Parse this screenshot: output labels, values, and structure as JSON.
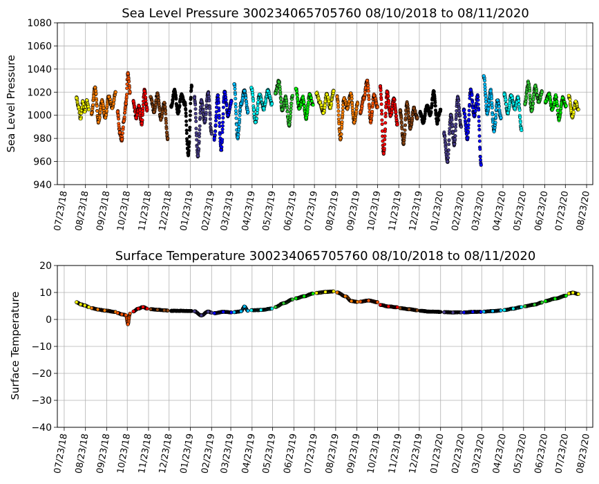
{
  "chart_data": [
    {
      "type": "scatter",
      "title": "Sea Level Pressure 300234065705760  08/10/2018 to 08/11/2020",
      "xlabel": "",
      "ylabel": "Sea Level Pressure",
      "ylim": [
        940,
        1080
      ],
      "yticks": [
        940,
        960,
        980,
        1000,
        1020,
        1040,
        1060,
        1080
      ],
      "xlim": [
        "2018-07-13",
        "2020-09-01"
      ],
      "xtick_labels": [
        "07/23/18",
        "08/23/18",
        "09/23/18",
        "10/23/18",
        "11/23/18",
        "12/23/18",
        "01/23/19",
        "02/23/19",
        "03/23/19",
        "04/23/19",
        "05/23/19",
        "06/23/19",
        "07/23/19",
        "08/23/19",
        "09/23/19",
        "10/23/19",
        "11/23/19",
        "12/23/19",
        "01/23/20",
        "02/23/20",
        "03/23/20",
        "04/23/20",
        "05/23/20",
        "06/23/20",
        "07/23/20",
        "08/23/20"
      ],
      "grid": true,
      "series": [
        {
          "color": "#ffff00",
          "x": [
            "2018-08-10",
            "2018-08-13",
            "2018-08-16",
            "2018-08-19",
            "2018-08-22",
            "2018-08-25",
            "2018-08-28"
          ],
          "y": [
            1015,
            1007,
            997,
            1012,
            1003,
            1013,
            1005
          ]
        },
        {
          "color": "#ff7f00",
          "x": [
            "2018-09-01",
            "2018-09-06",
            "2018-09-11",
            "2018-09-16",
            "2018-09-21",
            "2018-09-26",
            "2018-10-01",
            "2018-10-06"
          ],
          "y": [
            1002,
            1024,
            994,
            1012,
            998,
            1016,
            1006,
            1020
          ]
        },
        {
          "color": "#ff5500",
          "x": [
            "2018-10-09",
            "2018-10-12",
            "2018-10-15",
            "2018-10-18",
            "2018-10-21",
            "2018-10-24",
            "2018-10-27"
          ],
          "y": [
            1003,
            985,
            979,
            995,
            1010,
            1036,
            1020
          ]
        },
        {
          "color": "#ff0000",
          "x": [
            "2018-11-01",
            "2018-11-05",
            "2018-11-09",
            "2018-11-13",
            "2018-11-17",
            "2018-11-21"
          ],
          "y": [
            1012,
            998,
            1008,
            993,
            1021,
            1005
          ]
        },
        {
          "color": "#8b4513",
          "x": [
            "2018-11-26",
            "2018-12-01",
            "2018-12-06",
            "2018-12-11",
            "2018-12-16",
            "2018-12-21"
          ],
          "y": [
            1016,
            1003,
            1018,
            997,
            1011,
            980
          ]
        },
        {
          "color": "#000000",
          "x": [
            "2018-12-26",
            "2018-12-31",
            "2019-01-05",
            "2019-01-10",
            "2019-01-15",
            "2019-01-20",
            "2019-01-25"
          ],
          "y": [
            1008,
            1021,
            1002,
            1017,
            1010,
            966,
            1025
          ]
        },
        {
          "color": "#483d8b",
          "x": [
            "2019-01-29",
            "2019-02-03",
            "2019-02-08",
            "2019-02-13",
            "2019-02-18",
            "2019-02-23"
          ],
          "y": [
            1015,
            965,
            1012,
            995,
            1019,
            984
          ]
        },
        {
          "color": "#0000ff",
          "x": [
            "2019-02-27",
            "2019-03-04",
            "2019-03-09",
            "2019-03-14",
            "2019-03-19",
            "2019-03-24"
          ],
          "y": [
            980,
            1017,
            970,
            1020,
            1000,
            1012
          ]
        },
        {
          "color": "#00bfff",
          "x": [
            "2019-03-28",
            "2019-04-02",
            "2019-04-07",
            "2019-04-12",
            "2019-04-17"
          ],
          "y": [
            1027,
            981,
            1010,
            1021,
            1003
          ]
        },
        {
          "color": "#00ffff",
          "x": [
            "2019-04-22",
            "2019-04-28",
            "2019-05-04",
            "2019-05-10",
            "2019-05-16",
            "2019-05-22"
          ],
          "y": [
            1024,
            994,
            1018,
            1006,
            1021,
            1010
          ]
        },
        {
          "color": "#32cd32",
          "x": [
            "2019-05-27",
            "2019-06-01",
            "2019-06-06",
            "2019-06-11",
            "2019-06-16",
            "2019-06-21"
          ],
          "y": [
            1019,
            1029,
            1005,
            1015,
            992,
            1017
          ]
        },
        {
          "color": "#00ff00",
          "x": [
            "2019-06-26",
            "2019-07-01",
            "2019-07-06",
            "2019-07-11",
            "2019-07-16",
            "2019-07-21"
          ],
          "y": [
            1023,
            1006,
            1015,
            998,
            1018,
            1009
          ]
        },
        {
          "color": "#ffff00",
          "x": [
            "2019-07-26",
            "2019-07-31",
            "2019-08-05",
            "2019-08-10",
            "2019-08-15",
            "2019-08-20"
          ],
          "y": [
            1019,
            1011,
            1002,
            1018,
            1007,
            1021
          ]
        },
        {
          "color": "#ff7f00",
          "x": [
            "2019-08-25",
            "2019-08-30",
            "2019-09-04",
            "2019-09-09",
            "2019-09-14",
            "2019-09-19",
            "2019-09-24"
          ],
          "y": [
            1016,
            980,
            1014,
            1006,
            1019,
            994,
            1010
          ]
        },
        {
          "color": "#ff5500",
          "x": [
            "2019-09-28",
            "2019-10-03",
            "2019-10-08",
            "2019-10-13",
            "2019-10-18",
            "2019-10-23"
          ],
          "y": [
            1003,
            1015,
            1030,
            995,
            1017,
            1007
          ]
        },
        {
          "color": "#ff0000",
          "x": [
            "2019-10-27",
            "2019-11-01",
            "2019-11-06",
            "2019-11-11",
            "2019-11-16",
            "2019-11-21"
          ],
          "y": [
            1025,
            967,
            1020,
            1000,
            1014,
            992
          ]
        },
        {
          "color": "#8b4513",
          "x": [
            "2019-11-25",
            "2019-11-30",
            "2019-12-05",
            "2019-12-10",
            "2019-12-15",
            "2019-12-20"
          ],
          "y": [
            1004,
            976,
            1010,
            989,
            1006,
            998
          ]
        },
        {
          "color": "#000000",
          "x": [
            "2019-12-24",
            "2019-12-29",
            "2020-01-03",
            "2020-01-08",
            "2020-01-13",
            "2020-01-18",
            "2020-01-23"
          ],
          "y": [
            1002,
            994,
            1008,
            1001,
            1020,
            994,
            1005
          ]
        },
        {
          "color": "#483d8b",
          "x": [
            "2020-01-28",
            "2020-02-02",
            "2020-02-07",
            "2020-02-12",
            "2020-02-17",
            "2020-02-22"
          ],
          "y": [
            984,
            960,
            1000,
            975,
            1015,
            990
          ]
        },
        {
          "color": "#0000ff",
          "x": [
            "2020-02-26",
            "2020-03-02",
            "2020-03-07",
            "2020-03-12",
            "2020-03-17",
            "2020-03-22"
          ],
          "y": [
            1004,
            980,
            1022,
            1000,
            1016,
            957
          ]
        },
        {
          "color": "#00bfff",
          "x": [
            "2020-03-26",
            "2020-03-31",
            "2020-04-05",
            "2020-04-10",
            "2020-04-15",
            "2020-04-20"
          ],
          "y": [
            1034,
            1002,
            1021,
            986,
            1013,
            998
          ]
        },
        {
          "color": "#00ffff",
          "x": [
            "2020-04-25",
            "2020-04-30",
            "2020-05-05",
            "2020-05-10",
            "2020-05-15",
            "2020-05-20"
          ],
          "y": [
            1018,
            1002,
            1017,
            1006,
            1015,
            987
          ]
        },
        {
          "color": "#32cd32",
          "x": [
            "2020-05-25",
            "2020-05-30",
            "2020-06-04",
            "2020-06-09",
            "2020-06-14",
            "2020-06-19"
          ],
          "y": [
            1010,
            1028,
            1004,
            1025,
            1012,
            1020
          ]
        },
        {
          "color": "#00ff00",
          "x": [
            "2020-06-24",
            "2020-06-29",
            "2020-07-04",
            "2020-07-09",
            "2020-07-14",
            "2020-07-19",
            "2020-07-24"
          ],
          "y": [
            1012,
            1018,
            1005,
            1016,
            997,
            1015,
            1008
          ]
        },
        {
          "color": "#ffff00",
          "x": [
            "2020-07-28",
            "2020-08-02",
            "2020-08-07",
            "2020-08-11"
          ],
          "y": [
            1017,
            999,
            1012,
            1005
          ]
        }
      ]
    },
    {
      "type": "scatter",
      "title": "Surface Temperature 300234065705760  08/10/2018 to 08/11/2020",
      "xlabel": "",
      "ylabel": "Surface Temperature",
      "ylim": [
        -40,
        20
      ],
      "yticks": [
        -40,
        -30,
        -20,
        -10,
        0,
        10,
        20
      ],
      "ytick_labels": [
        "−40",
        "−30",
        "−20",
        "−10",
        "0",
        "10",
        "20"
      ],
      "xlim": [
        "2018-07-13",
        "2020-09-01"
      ],
      "xtick_labels": [
        "07/23/18",
        "08/23/18",
        "09/23/18",
        "10/23/18",
        "11/23/18",
        "12/23/18",
        "01/23/19",
        "02/23/19",
        "03/23/19",
        "04/23/19",
        "05/23/19",
        "06/23/19",
        "07/23/19",
        "08/23/19",
        "09/23/19",
        "10/23/19",
        "11/23/19",
        "12/23/19",
        "01/23/20",
        "02/23/20",
        "03/23/20",
        "04/23/20",
        "05/23/20",
        "06/23/20",
        "07/23/20",
        "08/23/20"
      ],
      "grid": true,
      "series": [
        {
          "color": "#ffff00",
          "x": [
            "2018-08-10",
            "2018-08-16",
            "2018-08-22",
            "2018-08-28"
          ],
          "y": [
            6.4,
            5.6,
            5.2,
            4.6
          ]
        },
        {
          "color": "#ff7f00",
          "x": [
            "2018-09-01",
            "2018-09-10",
            "2018-09-20",
            "2018-10-06"
          ],
          "y": [
            4.2,
            3.7,
            3.3,
            2.8
          ]
        },
        {
          "color": "#ff5500",
          "x": [
            "2018-10-09",
            "2018-10-15",
            "2018-10-21",
            "2018-10-24",
            "2018-10-27"
          ],
          "y": [
            2.4,
            1.9,
            1.6,
            -1.8,
            2.2
          ]
        },
        {
          "color": "#ff0000",
          "x": [
            "2018-11-01",
            "2018-11-08",
            "2018-11-15",
            "2018-11-21"
          ],
          "y": [
            3.0,
            4.0,
            4.6,
            4.0
          ]
        },
        {
          "color": "#8b4513",
          "x": [
            "2018-11-26",
            "2018-12-06",
            "2018-12-16",
            "2018-12-21"
          ],
          "y": [
            3.8,
            3.6,
            3.4,
            3.3
          ]
        },
        {
          "color": "#000000",
          "x": [
            "2018-12-26",
            "2019-01-08",
            "2019-01-25"
          ],
          "y": [
            3.2,
            3.2,
            3.1
          ]
        },
        {
          "color": "#483d8b",
          "x": [
            "2019-01-29",
            "2019-02-08",
            "2019-02-18",
            "2019-02-23"
          ],
          "y": [
            3.0,
            1.5,
            2.9,
            2.5
          ]
        },
        {
          "color": "#0000ff",
          "x": [
            "2019-02-27",
            "2019-03-12",
            "2019-03-24"
          ],
          "y": [
            2.3,
            2.8,
            2.6
          ]
        },
        {
          "color": "#00bfff",
          "x": [
            "2019-03-28",
            "2019-04-07",
            "2019-04-12",
            "2019-04-17"
          ],
          "y": [
            2.7,
            3.0,
            4.8,
            3.2
          ]
        },
        {
          "color": "#00ffff",
          "x": [
            "2019-04-22",
            "2019-05-06",
            "2019-05-22"
          ],
          "y": [
            3.4,
            3.5,
            4.0
          ]
        },
        {
          "color": "#32cd32",
          "x": [
            "2019-05-27",
            "2019-06-08",
            "2019-06-21"
          ],
          "y": [
            4.6,
            6.0,
            7.4
          ]
        },
        {
          "color": "#00ff00",
          "x": [
            "2019-06-26",
            "2019-07-08",
            "2019-07-21"
          ],
          "y": [
            7.8,
            8.6,
            9.6
          ]
        },
        {
          "color": "#ffff00",
          "x": [
            "2019-07-26",
            "2019-08-08",
            "2019-08-20"
          ],
          "y": [
            9.8,
            10.2,
            10.4
          ]
        },
        {
          "color": "#ff7f00",
          "x": [
            "2019-08-25",
            "2019-09-06",
            "2019-09-15",
            "2019-09-24"
          ],
          "y": [
            10.0,
            8.6,
            6.8,
            6.5
          ]
        },
        {
          "color": "#ff5500",
          "x": [
            "2019-09-28",
            "2019-10-10",
            "2019-10-23"
          ],
          "y": [
            6.6,
            7.0,
            6.4
          ]
        },
        {
          "color": "#ff0000",
          "x": [
            "2019-10-27",
            "2019-11-08",
            "2019-11-21"
          ],
          "y": [
            5.4,
            4.8,
            4.5
          ]
        },
        {
          "color": "#8b4513",
          "x": [
            "2019-11-25",
            "2019-12-08",
            "2019-12-20"
          ],
          "y": [
            4.2,
            3.8,
            3.4
          ]
        },
        {
          "color": "#000000",
          "x": [
            "2019-12-24",
            "2020-01-08",
            "2020-01-23"
          ],
          "y": [
            3.2,
            2.9,
            2.8
          ]
        },
        {
          "color": "#483d8b",
          "x": [
            "2020-01-28",
            "2020-02-10",
            "2020-02-22"
          ],
          "y": [
            2.7,
            2.6,
            2.6
          ]
        },
        {
          "color": "#0000ff",
          "x": [
            "2020-02-26",
            "2020-03-10",
            "2020-03-22"
          ],
          "y": [
            2.6,
            2.8,
            2.8
          ]
        },
        {
          "color": "#00bfff",
          "x": [
            "2020-03-26",
            "2020-04-08",
            "2020-04-20"
          ],
          "y": [
            2.9,
            3.1,
            3.3
          ]
        },
        {
          "color": "#00ffff",
          "x": [
            "2020-04-25",
            "2020-05-08",
            "2020-05-20"
          ],
          "y": [
            3.5,
            4.0,
            4.6
          ]
        },
        {
          "color": "#32cd32",
          "x": [
            "2020-05-25",
            "2020-06-08",
            "2020-06-19"
          ],
          "y": [
            4.9,
            5.5,
            6.3
          ]
        },
        {
          "color": "#00ff00",
          "x": [
            "2020-06-24",
            "2020-07-08",
            "2020-07-24"
          ],
          "y": [
            6.8,
            7.7,
            8.8
          ]
        },
        {
          "color": "#ffff00",
          "x": [
            "2020-07-28",
            "2020-08-03",
            "2020-08-11"
          ],
          "y": [
            9.6,
            9.9,
            9.4
          ]
        }
      ]
    }
  ]
}
